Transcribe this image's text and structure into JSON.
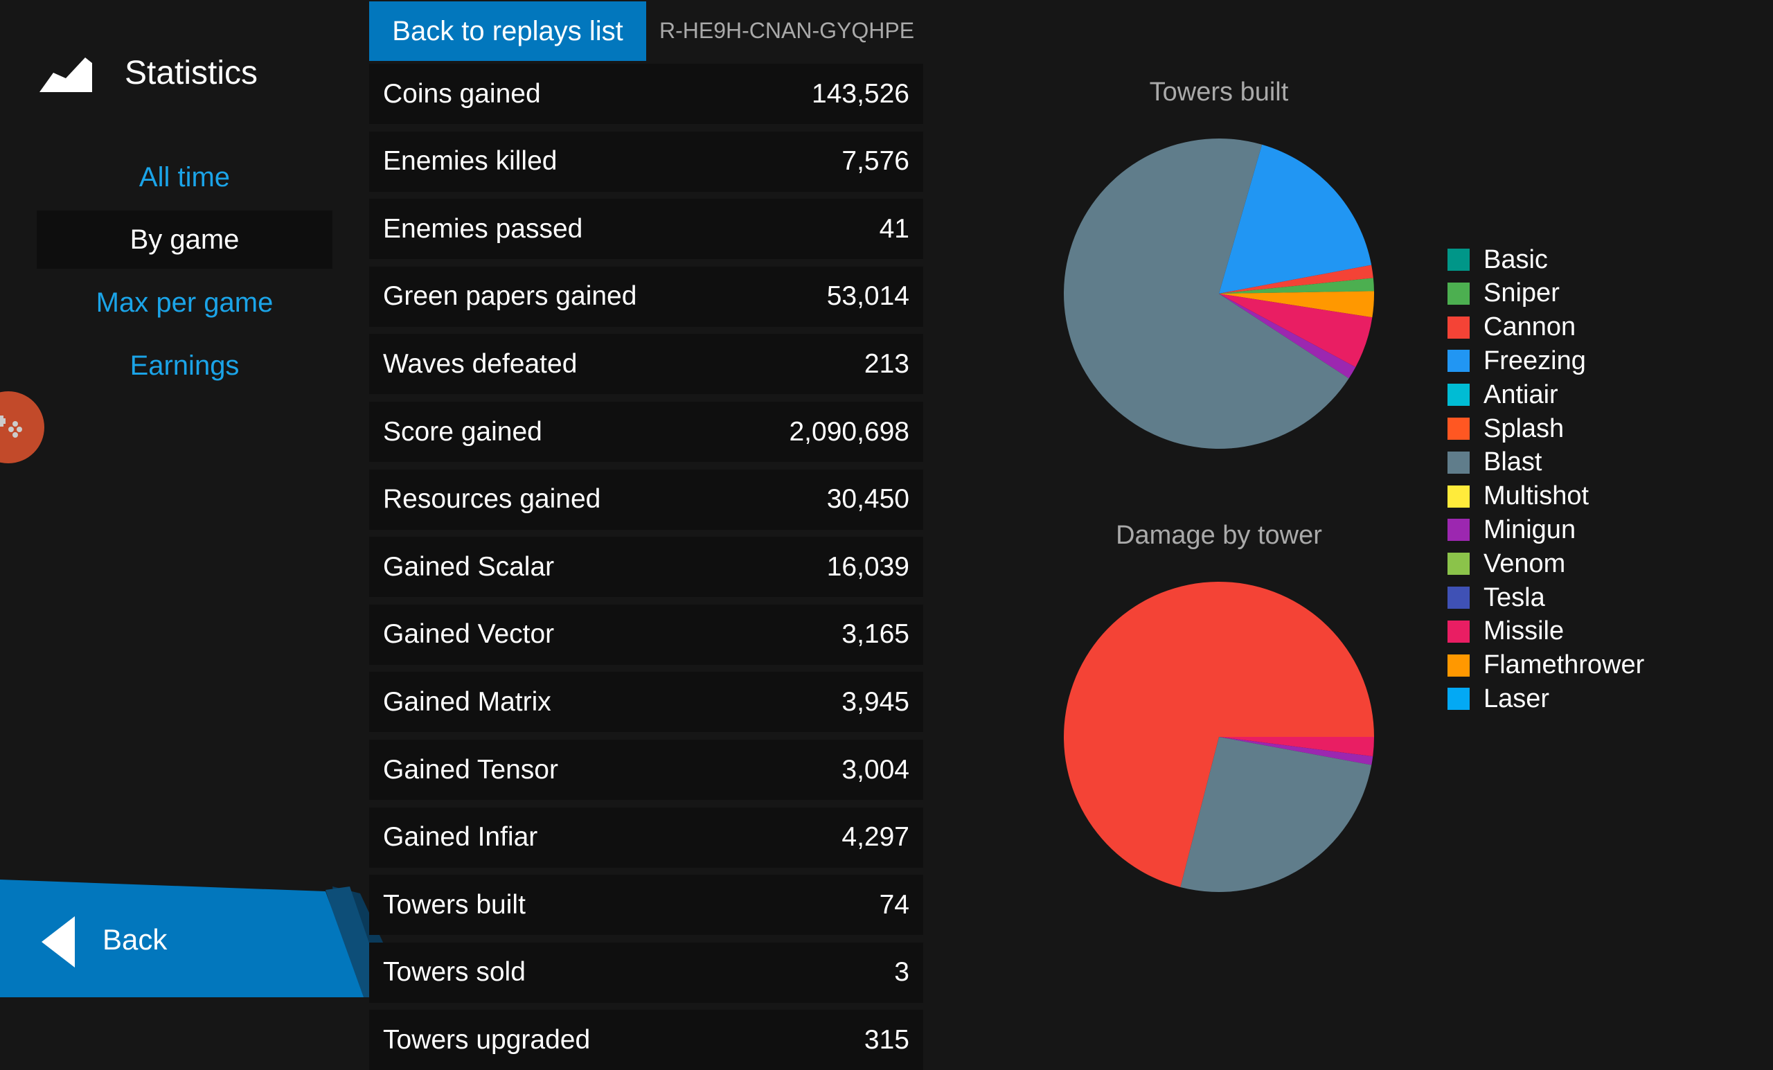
{
  "sidebar": {
    "title": "Statistics",
    "nav": [
      {
        "label": "All time"
      },
      {
        "label": "By game"
      },
      {
        "label": "Max per game"
      },
      {
        "label": "Earnings"
      }
    ],
    "back_label": "Back"
  },
  "header": {
    "back_to_replays": "Back to replays list",
    "replay_code": "R-HE9H-CNAN-GYQHPE"
  },
  "stats": [
    {
      "label": "Coins gained",
      "value": "143,526"
    },
    {
      "label": "Enemies killed",
      "value": "7,576"
    },
    {
      "label": "Enemies passed",
      "value": "41"
    },
    {
      "label": "Green papers gained",
      "value": "53,014"
    },
    {
      "label": "Waves defeated",
      "value": "213"
    },
    {
      "label": "Score gained",
      "value": "2,090,698"
    },
    {
      "label": "Resources gained",
      "value": "30,450"
    },
    {
      "label": "Gained Scalar",
      "value": "16,039"
    },
    {
      "label": "Gained Vector",
      "value": "3,165"
    },
    {
      "label": "Gained Matrix",
      "value": "3,945"
    },
    {
      "label": "Gained Tensor",
      "value": "3,004"
    },
    {
      "label": "Gained Infiar",
      "value": "4,297"
    },
    {
      "label": "Towers built",
      "value": "74"
    },
    {
      "label": "Towers sold",
      "value": "3"
    },
    {
      "label": "Towers upgraded",
      "value": "315"
    }
  ],
  "legend": [
    {
      "label": "Basic",
      "color": "#009688"
    },
    {
      "label": "Sniper",
      "color": "#4caf50"
    },
    {
      "label": "Cannon",
      "color": "#f44336"
    },
    {
      "label": "Freezing",
      "color": "#2196f3"
    },
    {
      "label": "Antiair",
      "color": "#00bcd4"
    },
    {
      "label": "Splash",
      "color": "#ff5722"
    },
    {
      "label": "Blast",
      "color": "#607d8b"
    },
    {
      "label": "Multishot",
      "color": "#ffeb3b"
    },
    {
      "label": "Minigun",
      "color": "#9c27b0"
    },
    {
      "label": "Venom",
      "color": "#8bc34a"
    },
    {
      "label": "Tesla",
      "color": "#3f51b5"
    },
    {
      "label": "Missile",
      "color": "#e91e63"
    },
    {
      "label": "Flamethrower",
      "color": "#ff9800"
    },
    {
      "label": "Laser",
      "color": "#03a9f4"
    }
  ],
  "chart_data": [
    {
      "type": "pie",
      "title": "Towers built",
      "slices": [
        {
          "name": "Freezing",
          "value": 13,
          "color": "#2196f3"
        },
        {
          "name": "Cannon",
          "value": 1,
          "color": "#f44336"
        },
        {
          "name": "Sniper",
          "value": 1,
          "color": "#4caf50"
        },
        {
          "name": "Flamethrower",
          "value": 2,
          "color": "#ff9800"
        },
        {
          "name": "Missile",
          "value": 4,
          "color": "#e91e63"
        },
        {
          "name": "Minigun",
          "value": 1,
          "color": "#9c27b0"
        },
        {
          "name": "Blast",
          "value": 52,
          "color": "#607d8b"
        }
      ]
    },
    {
      "type": "pie",
      "title": "Damage by tower",
      "slices": [
        {
          "name": "Missile",
          "value": 2.0,
          "color": "#e91e63"
        },
        {
          "name": "Minigun",
          "value": 0.9,
          "color": "#9c27b0"
        },
        {
          "name": "Blast",
          "value": 26.1,
          "color": "#607d8b"
        },
        {
          "name": "Cannon",
          "value": 71.0,
          "color": "#f44336"
        }
      ]
    }
  ]
}
